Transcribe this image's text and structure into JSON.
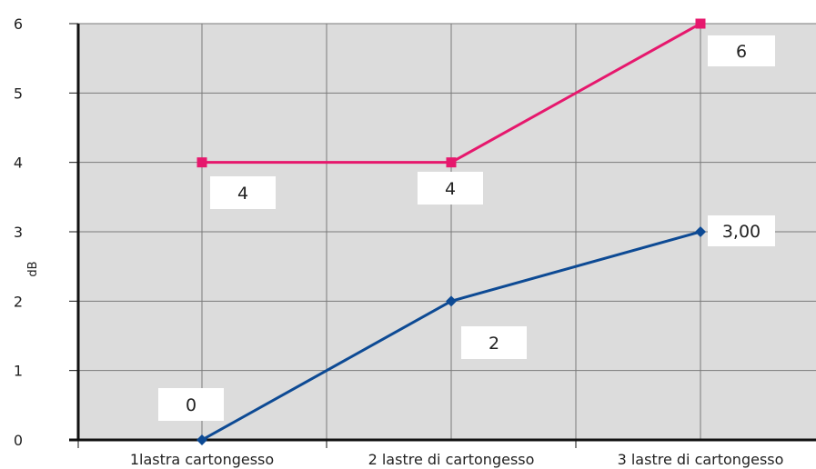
{
  "chart_data": {
    "type": "line",
    "title": "",
    "xlabel": "",
    "ylabel": "dB",
    "categories": [
      "1lastra cartongesso",
      "2 lastre di cartongesso",
      "3 lastre di cartongesso"
    ],
    "ylim": [
      0,
      6
    ],
    "yticks": [
      "0",
      "1",
      "2",
      "3",
      "4",
      "5",
      "6"
    ],
    "grid": true,
    "legend": "none",
    "series": [
      {
        "values": [
          4,
          4,
          6
        ],
        "color": "#e6186d",
        "marker": "square",
        "labels": [
          "4",
          "4",
          "6"
        ]
      },
      {
        "values": [
          0,
          2,
          3
        ],
        "color": "#0d4a94",
        "marker": "diamond",
        "labels": [
          "0",
          "2",
          "3,00"
        ]
      }
    ],
    "colors": {
      "plot_background": "#dcdcdc",
      "grid": "#7a7a7a",
      "axis": "#111111"
    }
  }
}
